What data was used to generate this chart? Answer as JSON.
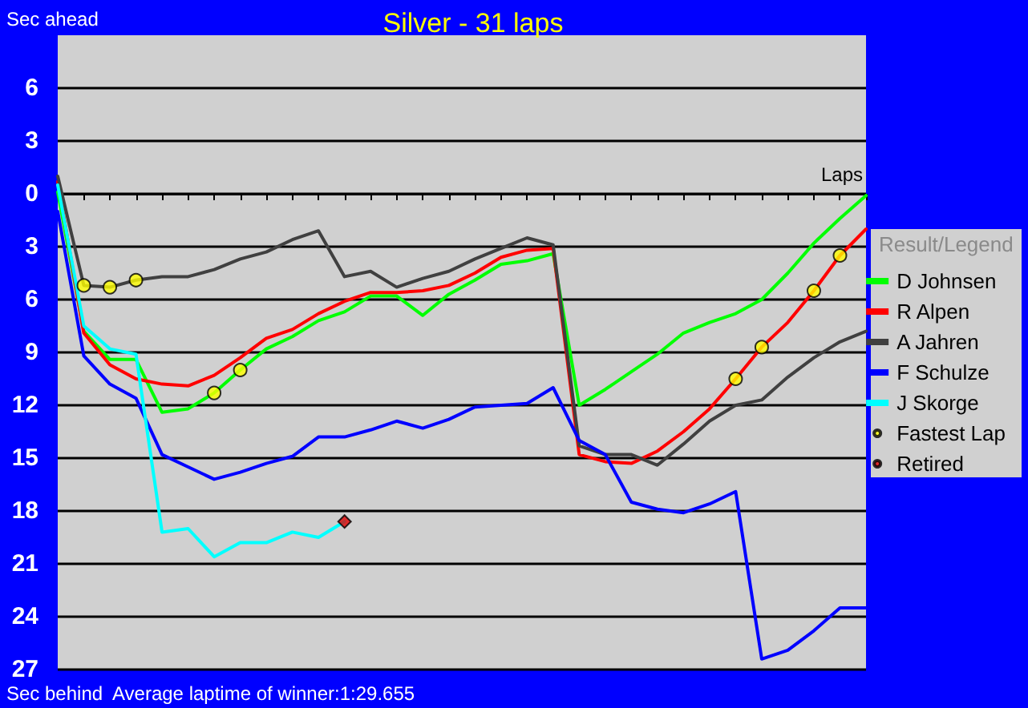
{
  "chart_data": {
    "type": "line",
    "title": "Silver - 31 laps",
    "ylabel": "Sec ahead",
    "xlabel": "Laps",
    "legend_title": "Result/Legend",
    "annotations": [
      "Sec behind",
      "Average laptime of winner:1:29.655"
    ],
    "categories": [
      null,
      null,
      null,
      null,
      null,
      null,
      null,
      null,
      null,
      null,
      null,
      null,
      null,
      null,
      null,
      null,
      null,
      null,
      null,
      null,
      null,
      null,
      null,
      null,
      null,
      null,
      null,
      null,
      null,
      null,
      null,
      null
    ],
    "ylim": [
      -27,
      9
    ],
    "yticks": [
      {
        "value": -27,
        "label": "27"
      },
      {
        "value": -24,
        "label": "24"
      },
      {
        "value": -21,
        "label": "21"
      },
      {
        "value": -18,
        "label": "18"
      },
      {
        "value": -15,
        "label": "15"
      },
      {
        "value": -12,
        "label": "12"
      },
      {
        "value": -9,
        "label": "9"
      },
      {
        "value": -6,
        "label": "6"
      },
      {
        "value": -3,
        "label": "3"
      },
      0,
      3,
      6
    ],
    "tick_labels": "y",
    "grid": "y",
    "legend": "right",
    "marker": "none",
    "line_style": "solid",
    "series": [
      {
        "name": "D Johnsen",
        "color": "#00ff00",
        "values": [
          0.1,
          -7.8,
          -9.4,
          -9.4,
          -12.4,
          -12.2,
          -11.3,
          -10.0,
          -8.8,
          -8.1,
          -7.2,
          -6.7,
          -5.8,
          -5.8,
          -6.9,
          -5.7,
          -4.9,
          -4.0,
          -3.8,
          -3.4,
          -12.0,
          -11.1,
          -10.1,
          -9.1,
          -7.9,
          -7.3,
          -6.8,
          -6.0,
          -4.5,
          -2.8,
          -1.4,
          -0.1
        ]
      },
      {
        "name": "R Alpen",
        "color": "#ff0000",
        "values": [
          0.7,
          -7.9,
          -9.7,
          -10.5,
          -10.8,
          -10.9,
          -10.3,
          -9.3,
          -8.2,
          -7.7,
          -6.8,
          -6.1,
          -5.6,
          -5.6,
          -5.5,
          -5.2,
          -4.5,
          -3.6,
          -3.2,
          -3.1,
          -14.8,
          -15.2,
          -15.3,
          -14.6,
          -13.5,
          -12.2,
          -10.5,
          -8.7,
          -7.3,
          -5.5,
          -3.5,
          -2.0
        ]
      },
      {
        "name": "A Jahren",
        "color": "#404040",
        "values": [
          1.0,
          -5.2,
          -5.3,
          -4.9,
          -4.7,
          -4.7,
          -4.3,
          -3.7,
          -3.3,
          -2.6,
          -2.1,
          -4.7,
          -4.4,
          -5.3,
          -4.8,
          -4.4,
          -3.7,
          -3.1,
          -2.5,
          -2.9,
          -14.3,
          -14.8,
          -14.8,
          -15.4,
          -14.2,
          -12.9,
          -12.0,
          -11.7,
          -10.4,
          -9.3,
          -8.4,
          -7.8
        ]
      },
      {
        "name": "F Schulze",
        "color": "#0000ff",
        "values": [
          -1.0,
          -9.2,
          -10.8,
          -11.6,
          -14.8,
          -15.5,
          -16.2,
          -15.8,
          -15.3,
          -14.9,
          -13.8,
          -13.8,
          -13.4,
          -12.9,
          -13.3,
          -12.8,
          -12.1,
          -12.0,
          -11.9,
          -11.0,
          -14.0,
          -14.8,
          -17.5,
          -17.9,
          -18.1,
          -17.6,
          -16.9,
          -26.4,
          -25.9,
          -24.8,
          -23.5,
          -23.5
        ]
      },
      {
        "name": "J Skorge",
        "color": "#00ffff",
        "values": [
          0.5,
          -7.5,
          -8.8,
          -9.1,
          -19.2,
          -19.0,
          -20.6,
          -19.8,
          -19.8,
          -19.2,
          -19.5,
          -18.6,
          null,
          null,
          null,
          null,
          null,
          null,
          null,
          null,
          null,
          null,
          null,
          null,
          null,
          null,
          null,
          null,
          null,
          null,
          null,
          null
        ]
      },
      {
        "name": "Fastest Lap",
        "type": "scatter",
        "marker": "circle",
        "color": "#ffff00",
        "values": [
          null,
          -5.2,
          -5.3,
          -4.9,
          null,
          null,
          -11.3,
          -10.0,
          null,
          null,
          null,
          null,
          null,
          null,
          null,
          null,
          null,
          null,
          null,
          null,
          null,
          null,
          null,
          null,
          null,
          null,
          -10.5,
          -8.7,
          null,
          -5.5,
          -3.5,
          null
        ]
      },
      {
        "name": "Retired",
        "type": "scatter",
        "marker": "diamond",
        "color": "#e00000",
        "values": [
          null,
          null,
          null,
          null,
          null,
          null,
          null,
          null,
          null,
          null,
          null,
          -18.6,
          null,
          null,
          null,
          null,
          null,
          null,
          null,
          null,
          null,
          null,
          null,
          null,
          null,
          null,
          null,
          null,
          null,
          null,
          null,
          null
        ]
      }
    ]
  }
}
